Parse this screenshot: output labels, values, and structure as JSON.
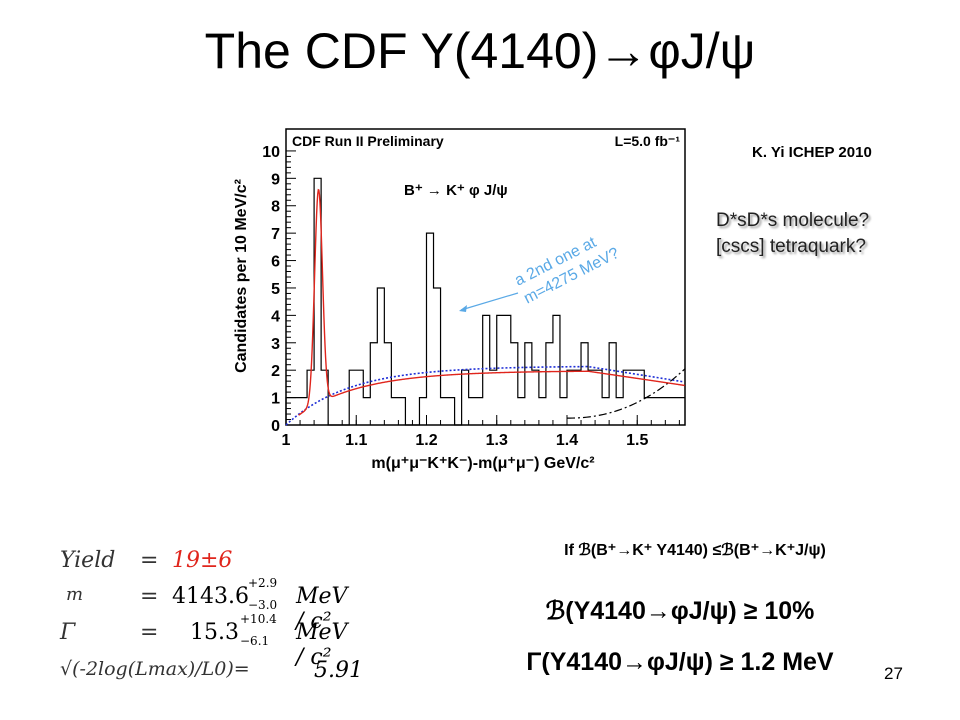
{
  "slide": {
    "title": "The CDF Y(4140)→φJ/ψ",
    "reference": "K. Yi ICHEP 2010",
    "molecule_line": "D*sD*s molecule?",
    "tetraquark_line": "[cscs] tetraquark?",
    "condition": "If ℬ(B⁺→K⁺ Y4140) ≤ℬ(B⁺→K⁺J/ψ)",
    "branching_ratio": "ℬ(Y4140→φJ/ψ) ≥ 10%",
    "width_limit": "Γ(Y4140→φJ/ψ) ≥ 1.2 MeV",
    "page_number": "27"
  },
  "results": {
    "yield_label": "Yield",
    "yield_eq": "=",
    "yield_value": "19±6",
    "mass_label": "m",
    "mass_eq": "=",
    "mass_value": "4143.6",
    "mass_err_up": "+2.9",
    "mass_err_down": "−3.0",
    "mass_unit": "MeV / c²",
    "width_label": "Γ",
    "width_eq": "=",
    "width_value": "15.3",
    "width_err_up": "+10.4",
    "width_err_down": "−6.1",
    "width_unit": "MeV / c²",
    "signif_label": "√(-2log(Lmax)/L0)=",
    "signif_value": "5.91"
  },
  "chart_data": {
    "type": "histogram",
    "header_left": "CDF Run II Preliminary",
    "header_right": "L=5.0 fb⁻¹",
    "decay_label": "B⁺ → K⁺ φ J/ψ",
    "annotation": "a 2nd one at m=4275 MeV?",
    "xlabel": "m(μ⁺μ⁻K⁺K⁻)-m(μ⁺μ⁻) GeV/c²",
    "ylabel": "Candidates per 10 MeV/c²",
    "xlim": [
      1.0,
      1.568
    ],
    "ylim": [
      0,
      10.8
    ],
    "x_ticks": [
      "1",
      "1.1",
      "1.2",
      "1.3",
      "1.4",
      "1.5"
    ],
    "y_ticks": [
      "0",
      "1",
      "2",
      "3",
      "4",
      "5",
      "6",
      "7",
      "8",
      "9",
      "10"
    ],
    "bin_width": 0.01,
    "bin_start": 1.0,
    "counts": [
      1,
      1,
      1,
      2,
      9,
      2,
      0,
      0,
      0,
      2,
      2,
      1,
      3,
      5,
      3,
      1,
      1,
      0,
      0,
      1,
      7,
      5,
      1,
      1,
      0,
      2,
      1,
      1,
      4,
      2,
      4,
      4,
      3,
      1,
      3,
      2,
      1,
      3,
      4,
      1,
      2,
      2,
      3,
      2,
      2,
      1,
      3,
      1,
      2,
      2,
      2,
      1,
      1,
      1,
      1,
      1,
      1
    ],
    "signal_mass": 1.0463,
    "fit_color": "#e0251c",
    "background_color": "#1f2fd6",
    "colors": {
      "histogram": "#000000",
      "annotation": "#5aa9e6"
    }
  }
}
